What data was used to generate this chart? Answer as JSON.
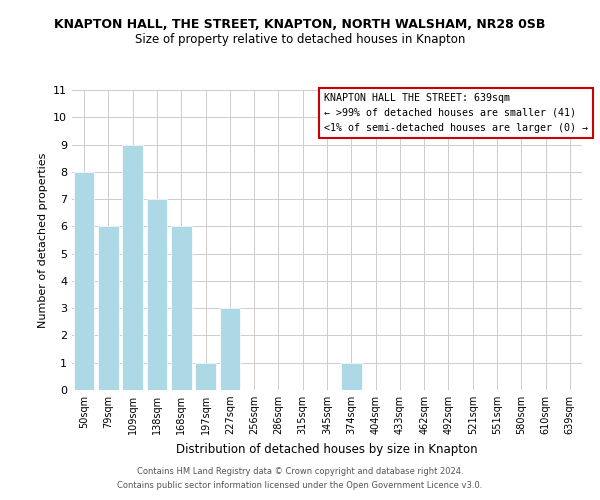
{
  "title": "KNAPTON HALL, THE STREET, KNAPTON, NORTH WALSHAM, NR28 0SB",
  "subtitle": "Size of property relative to detached houses in Knapton",
  "xlabel": "Distribution of detached houses by size in Knapton",
  "ylabel": "Number of detached properties",
  "bar_labels": [
    "50sqm",
    "79sqm",
    "109sqm",
    "138sqm",
    "168sqm",
    "197sqm",
    "227sqm",
    "256sqm",
    "286sqm",
    "315sqm",
    "345sqm",
    "374sqm",
    "404sqm",
    "433sqm",
    "462sqm",
    "492sqm",
    "521sqm",
    "551sqm",
    "580sqm",
    "610sqm",
    "639sqm"
  ],
  "bar_values": [
    8,
    6,
    9,
    7,
    6,
    1,
    3,
    0,
    0,
    0,
    0,
    1,
    0,
    0,
    0,
    0,
    0,
    0,
    0,
    0,
    0
  ],
  "bar_color": "#add8e6",
  "ylim": [
    0,
    11
  ],
  "yticks": [
    0,
    1,
    2,
    3,
    4,
    5,
    6,
    7,
    8,
    9,
    10,
    11
  ],
  "annotation_title": "KNAPTON HALL THE STREET: 639sqm",
  "annotation_line1": "← >99% of detached houses are smaller (41)",
  "annotation_line2": "<1% of semi-detached houses are larger (0) →",
  "footer_line1": "Contains HM Land Registry data © Crown copyright and database right 2024.",
  "footer_line2": "Contains public sector information licensed under the Open Government Licence v3.0.",
  "grid_color": "#cccccc",
  "annotation_box_edge": "#cc0000"
}
